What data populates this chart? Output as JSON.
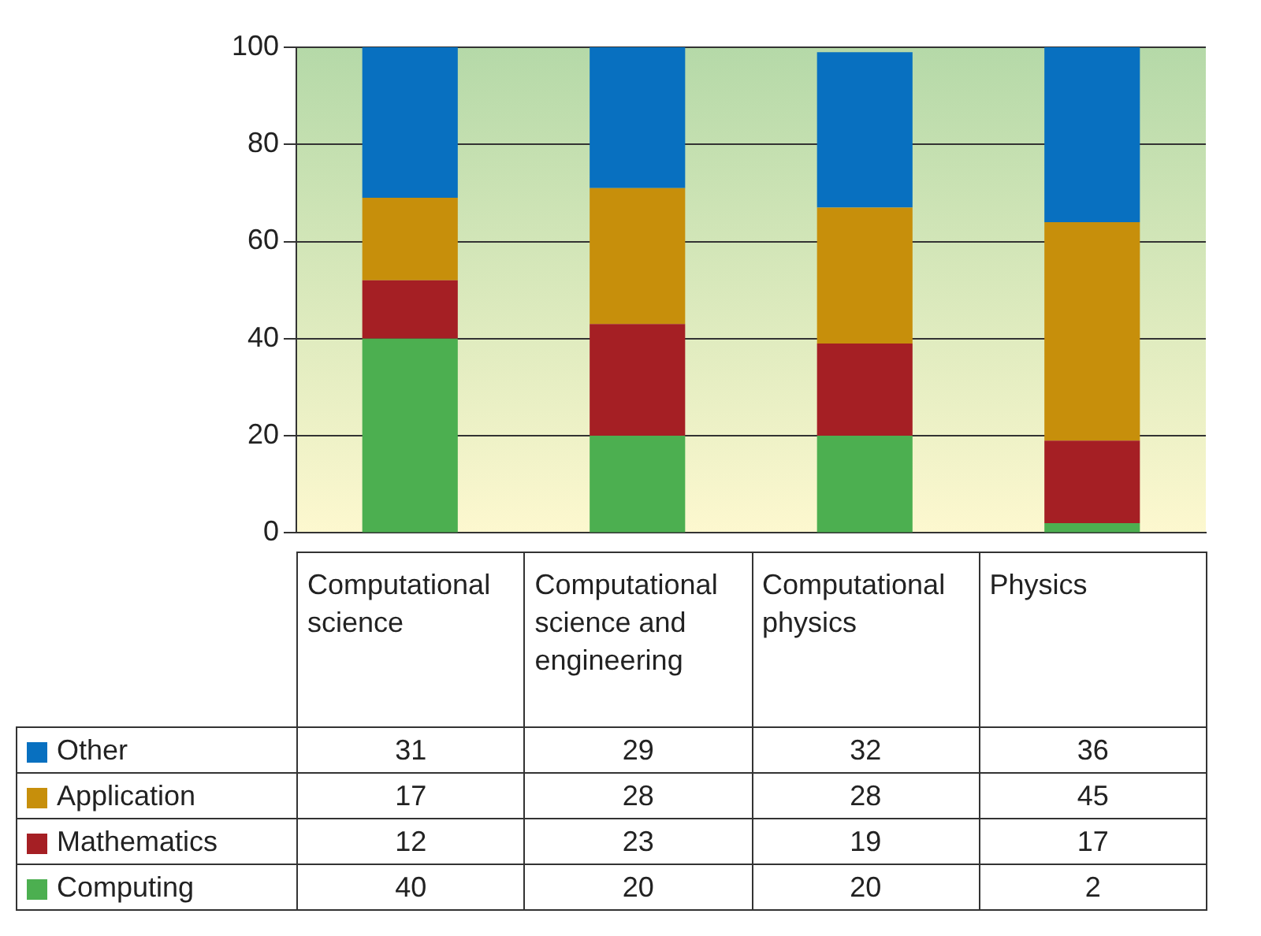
{
  "chart_data": {
    "type": "bar",
    "stacked": true,
    "categories": [
      "Computational science",
      "Computational science and engineering",
      "Computational physics",
      "Physics"
    ],
    "series": [
      {
        "name": "Computing",
        "color": "#4caf50",
        "values": [
          40,
          20,
          20,
          2
        ]
      },
      {
        "name": "Mathematics",
        "color": "#a51f24",
        "values": [
          12,
          23,
          19,
          17
        ]
      },
      {
        "name": "Application",
        "color": "#c78f0b",
        "values": [
          17,
          28,
          28,
          45
        ]
      },
      {
        "name": "Other",
        "color": "#0870c0",
        "values": [
          31,
          29,
          32,
          36
        ]
      }
    ],
    "ylim": [
      0,
      100
    ],
    "yticks": [
      0,
      20,
      40,
      60,
      80,
      100
    ],
    "grid": "y",
    "legend": "bottom left",
    "data_labels": true
  }
}
